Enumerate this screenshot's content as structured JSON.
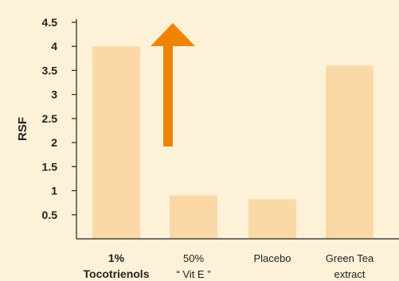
{
  "chart_data": {
    "type": "bar",
    "ylabel": "RSF",
    "xlabel": "",
    "ylim": [
      0,
      4.5
    ],
    "yticks": [
      "0.5",
      "1",
      "1.5",
      "2",
      "2.5",
      "3",
      "3.5",
      "4",
      "4.5"
    ],
    "categories": [
      {
        "lines": [
          "1%",
          "Tocotrienols"
        ],
        "highlight": true
      },
      {
        "lines": [
          "50%",
          "“ Vit E ”"
        ],
        "highlight": false
      },
      {
        "lines": [
          "Placebo"
        ],
        "highlight": false
      },
      {
        "lines": [
          "Green Tea",
          "extract"
        ],
        "highlight": false
      }
    ],
    "values": [
      4.0,
      0.9,
      0.82,
      3.6
    ],
    "grid": false,
    "annotation": {
      "type": "up-arrow",
      "color": "#ee8400"
    },
    "colors": {
      "background": "#fdf1d8",
      "bar": "#fad9a6",
      "axis": "#222222",
      "highlight_text": "#e8452a",
      "text": "#222222"
    }
  }
}
